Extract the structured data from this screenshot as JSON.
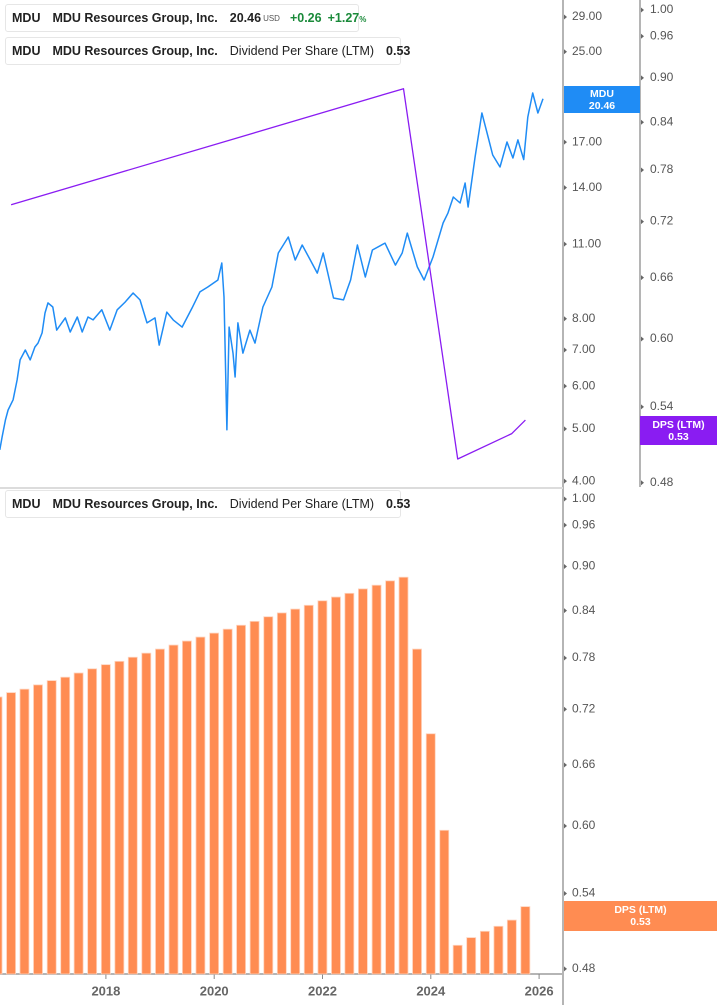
{
  "legend_price": {
    "ticker": "MDU",
    "name": "MDU Resources Group, Inc.",
    "price": "20.46",
    "currency": "USD",
    "change": "+0.26",
    "change_pct": "+1.27",
    "pct_sign": "%",
    "color": "#1f8cf5"
  },
  "legend_dps_top": {
    "ticker": "MDU",
    "name": "MDU Resources Group, Inc.",
    "metric": "Dividend Per Share (LTM)",
    "value": "0.53",
    "color": "#8a1cf2"
  },
  "legend_dps_bottom": {
    "ticker": "MDU",
    "name": "MDU Resources Group, Inc.",
    "metric": "Dividend Per Share (LTM)",
    "value": "0.53",
    "color": "#ff8c52"
  },
  "tags": {
    "price": {
      "line1": "MDU",
      "line2": "20.46"
    },
    "dps_top": {
      "line1": "DPS (LTM)",
      "line2": "0.53"
    },
    "dps_bottom": {
      "line1": "DPS (LTM)",
      "line2": "0.53"
    }
  },
  "chart_data": [
    {
      "type": "line",
      "panel": "top",
      "xlim": [
        "2016-01-01",
        "2026-02-01"
      ],
      "price_axis": {
        "scale": "log",
        "ylim": [
          3.95,
          30
        ],
        "ticks": [
          29,
          25,
          17,
          14,
          11,
          8,
          7,
          6,
          5,
          4
        ],
        "tick_labels": [
          "29.00",
          "25.00",
          "17.00",
          "14.00",
          "11.00",
          "8.00",
          "7.00",
          "6.00",
          "5.00",
          "4.00"
        ]
      },
      "dps_axis": {
        "scale": "log",
        "ylim": [
          0.48,
          1.0
        ],
        "ticks": [
          1.0,
          0.96,
          0.9,
          0.84,
          0.78,
          0.72,
          0.66,
          0.6,
          0.54,
          0.48
        ],
        "tick_labels": [
          "1.00",
          "0.96",
          "0.90",
          "0.84",
          "0.78",
          "0.72",
          "0.66",
          "0.60",
          "0.54",
          "0.48"
        ]
      },
      "series": [
        {
          "name": "MDU",
          "axis": "price",
          "color": "#1f8cf5",
          "points": [
            [
              "2016-01-16",
              4.57
            ],
            [
              "2016-01-31",
              4.83
            ],
            [
              "2016-02-23",
              5.19
            ],
            [
              "2016-03-11",
              5.42
            ],
            [
              "2016-04-14",
              5.66
            ],
            [
              "2016-05-11",
              6.16
            ],
            [
              "2016-05-31",
              6.71
            ],
            [
              "2016-07-05",
              7.0
            ],
            [
              "2016-08-08",
              6.71
            ],
            [
              "2016-09-09",
              7.09
            ],
            [
              "2016-09-30",
              7.21
            ],
            [
              "2016-10-27",
              7.53
            ],
            [
              "2016-11-16",
              8.2
            ],
            [
              "2016-12-06",
              8.56
            ],
            [
              "2017-01-08",
              8.41
            ],
            [
              "2017-02-04",
              7.62
            ],
            [
              "2017-04-01",
              8.03
            ],
            [
              "2017-05-04",
              7.56
            ],
            [
              "2017-06-21",
              8.06
            ],
            [
              "2017-07-24",
              7.56
            ],
            [
              "2017-09-02",
              8.06
            ],
            [
              "2017-10-06",
              7.96
            ],
            [
              "2017-12-04",
              8.31
            ],
            [
              "2018-01-27",
              7.62
            ],
            [
              "2018-03-16",
              8.31
            ],
            [
              "2018-05-09",
              8.59
            ],
            [
              "2018-07-02",
              8.93
            ],
            [
              "2018-08-18",
              8.67
            ],
            [
              "2018-10-04",
              7.86
            ],
            [
              "2018-11-28",
              8.03
            ],
            [
              "2018-12-26",
              7.15
            ],
            [
              "2019-02-16",
              8.23
            ],
            [
              "2019-03-29",
              7.96
            ],
            [
              "2019-05-28",
              7.72
            ],
            [
              "2019-08-04",
              8.38
            ],
            [
              "2019-09-26",
              8.97
            ],
            [
              "2019-11-19",
              9.16
            ],
            [
              "2020-01-26",
              9.44
            ],
            [
              "2020-02-22",
              10.15
            ],
            [
              "2020-03-06",
              8.78
            ],
            [
              "2020-03-26",
              4.98
            ],
            [
              "2020-04-10",
              7.72
            ],
            [
              "2020-05-06",
              6.91
            ],
            [
              "2020-05-20",
              6.24
            ],
            [
              "2020-06-09",
              7.86
            ],
            [
              "2020-07-12",
              6.91
            ],
            [
              "2020-08-29",
              7.62
            ],
            [
              "2020-10-02",
              7.21
            ],
            [
              "2020-11-25",
              8.41
            ],
            [
              "2021-01-25",
              9.16
            ],
            [
              "2021-03-07",
              10.59
            ],
            [
              "2021-05-14",
              11.34
            ],
            [
              "2021-06-30",
              10.28
            ],
            [
              "2021-08-16",
              10.96
            ],
            [
              "2021-10-10",
              10.28
            ],
            [
              "2021-11-27",
              9.72
            ],
            [
              "2022-01-06",
              10.59
            ],
            [
              "2022-03-14",
              8.74
            ],
            [
              "2022-05-21",
              8.67
            ],
            [
              "2022-07-08",
              9.44
            ],
            [
              "2022-08-23",
              10.96
            ],
            [
              "2022-10-16",
              9.56
            ],
            [
              "2022-12-03",
              10.73
            ],
            [
              "2023-02-27",
              11.05
            ],
            [
              "2023-05-06",
              10.06
            ],
            [
              "2023-06-21",
              10.59
            ],
            [
              "2023-07-25",
              11.53
            ],
            [
              "2023-10-01",
              9.98
            ],
            [
              "2023-11-17",
              9.44
            ],
            [
              "2024-01-16",
              10.41
            ],
            [
              "2024-03-23",
              12.04
            ],
            [
              "2024-04-26",
              12.57
            ],
            [
              "2024-05-31",
              13.45
            ],
            [
              "2024-07-16",
              13.11
            ],
            [
              "2024-08-19",
              14.28
            ],
            [
              "2024-09-09",
              12.89
            ],
            [
              "2024-10-26",
              15.96
            ],
            [
              "2024-12-11",
              19.25
            ],
            [
              "2025-01-22",
              17.38
            ],
            [
              "2025-02-23",
              16.09
            ],
            [
              "2025-04-11",
              15.29
            ],
            [
              "2025-05-28",
              17.01
            ],
            [
              "2025-07-07",
              15.89
            ],
            [
              "2025-08-10",
              17.16
            ],
            [
              "2025-09-19",
              15.78
            ],
            [
              "2025-10-16",
              18.92
            ],
            [
              "2025-11-19",
              20.97
            ],
            [
              "2025-12-23",
              19.25
            ],
            [
              "2026-01-27",
              20.46
            ]
          ]
        },
        {
          "name": "Dividend Per Share (LTM)",
          "axis": "dps",
          "color": "#8a1cf2",
          "points": [
            [
              "2016-03-31",
              0.739
            ],
            [
              "2023-06-30",
              0.885
            ],
            [
              "2024-06-30",
              0.498
            ],
            [
              "2025-06-30",
              0.518
            ],
            [
              "2025-09-30",
              0.529
            ]
          ]
        }
      ]
    },
    {
      "type": "bar",
      "panel": "bottom",
      "xlim": [
        "2016-01-01",
        "2026-02-01"
      ],
      "x_ticks": [
        "2018",
        "2020",
        "2022",
        "2024",
        "2026"
      ],
      "y_axis": {
        "scale": "log",
        "ylim": [
          0.48,
          1.0
        ],
        "ticks": [
          1.0,
          0.96,
          0.9,
          0.84,
          0.78,
          0.72,
          0.66,
          0.6,
          0.54,
          0.48
        ],
        "tick_labels": [
          "1.00",
          "0.96",
          "0.90",
          "0.84",
          "0.78",
          "0.72",
          "0.66",
          "0.60",
          "0.54",
          "0.48"
        ]
      },
      "series": [
        {
          "name": "Dividend Per Share (LTM)",
          "color": "#ff8c52",
          "categories": [
            "2015-12-31",
            "2016-03-31",
            "2016-06-30",
            "2016-09-30",
            "2016-12-31",
            "2017-03-31",
            "2017-06-30",
            "2017-09-30",
            "2017-12-31",
            "2018-03-31",
            "2018-06-30",
            "2018-09-30",
            "2018-12-31",
            "2019-03-31",
            "2019-06-30",
            "2019-09-30",
            "2019-12-31",
            "2020-03-31",
            "2020-06-30",
            "2020-09-30",
            "2020-12-31",
            "2021-03-31",
            "2021-06-30",
            "2021-09-30",
            "2021-12-31",
            "2022-03-31",
            "2022-06-30",
            "2022-09-30",
            "2022-12-31",
            "2023-03-31",
            "2023-06-30",
            "2023-09-30",
            "2023-12-31",
            "2024-03-31",
            "2024-06-30",
            "2024-09-30",
            "2024-12-31",
            "2025-03-31",
            "2025-06-30",
            "2025-09-30"
          ],
          "values": [
            0.734,
            0.739,
            0.743,
            0.748,
            0.753,
            0.757,
            0.762,
            0.767,
            0.772,
            0.776,
            0.781,
            0.786,
            0.791,
            0.796,
            0.801,
            0.806,
            0.811,
            0.816,
            0.821,
            0.826,
            0.832,
            0.837,
            0.842,
            0.847,
            0.853,
            0.858,
            0.863,
            0.869,
            0.874,
            0.88,
            0.885,
            0.791,
            0.693,
            0.596,
            0.498,
            0.504,
            0.509,
            0.513,
            0.518,
            0.529
          ]
        }
      ]
    }
  ]
}
